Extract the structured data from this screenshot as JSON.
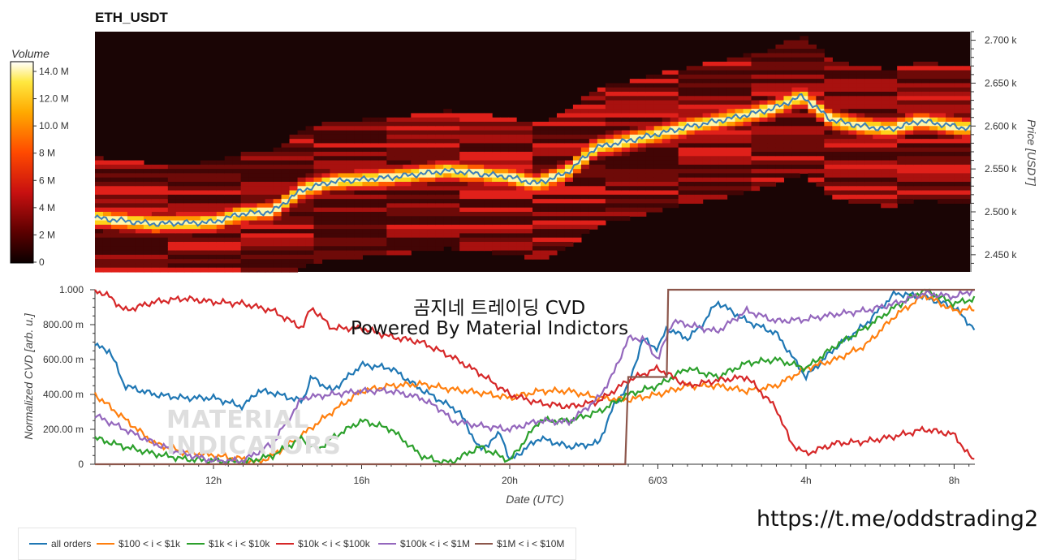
{
  "heatmap": {
    "title": "ETH_USDT",
    "colorbar_title": "Volume",
    "colorbar_ticks": [
      "14.0 M",
      "12.0 M",
      "10.0 M",
      "8 M",
      "6 M",
      "4 M",
      "2 M",
      "0"
    ],
    "y_axis_title": "Price [USDT]",
    "y_ticks": [
      "2.700 k",
      "2.650 k",
      "2.600 k",
      "2.550 k",
      "2.500 k",
      "2.450 k"
    ],
    "colors": {
      "bg": "#1a0505",
      "low": "#8a0e0e",
      "mid": "#e8211a",
      "high": "#ff8a00",
      "peak": "#fff7a8",
      "price_line": "#3c7fb8"
    }
  },
  "cvd": {
    "overlay_title_line1": "곰지네 트레이딩 CVD",
    "overlay_title_line2": "Powered By Material Indictors",
    "watermark_line1": "MATERIAL",
    "watermark_line2": "INDICATORS",
    "y_axis_title": "Normalized CVD [arb. u.]",
    "x_axis_title": "Date (UTC)",
    "link": "https://t.me/oddstrading2"
  },
  "legend": [
    {
      "label": "all orders",
      "color": "#1f77b4"
    },
    {
      "label": "$100 < i < $1k",
      "color": "#ff7f0e"
    },
    {
      "label": "$1k < i < $10k",
      "color": "#2ca02c"
    },
    {
      "label": "$10k < i < $100k",
      "color": "#d62728"
    },
    {
      "label": "$100k < i < $1M",
      "color": "#9467bd"
    },
    {
      "label": "$1M < i < $10M",
      "color": "#8c564b"
    }
  ],
  "chart_data": [
    {
      "type": "heatmap",
      "title": "ETH_USDT",
      "ylabel": "Price [USDT]",
      "ylim": [
        2430,
        2710
      ],
      "colorbar_range": [
        0,
        15000000
      ],
      "price_series": {
        "x": [
          0,
          2,
          4,
          5,
          6,
          7,
          8,
          10,
          12,
          14,
          15,
          16,
          17,
          18,
          20,
          22,
          23,
          24,
          25,
          26,
          27,
          28,
          29.5
        ],
        "y": [
          2493,
          2486,
          2488,
          2498,
          2500,
          2525,
          2535,
          2540,
          2548,
          2541,
          2533,
          2545,
          2575,
          2582,
          2598,
          2612,
          2620,
          2635,
          2607,
          2600,
          2596,
          2606,
          2598
        ]
      }
    },
    {
      "type": "line",
      "xlabel": "Date (UTC)",
      "ylabel": "Normalized CVD [arb. u.]",
      "xlim": [
        0,
        29.7
      ],
      "ylim": [
        0,
        1.0
      ],
      "x_ticks": [
        {
          "x": 4,
          "label": "12h"
        },
        {
          "x": 9,
          "label": "16h"
        },
        {
          "x": 14,
          "label": "20h"
        },
        {
          "x": 19,
          "label": "6/03"
        },
        {
          "x": 24,
          "label": "4h"
        },
        {
          "x": 29,
          "label": "8h"
        }
      ],
      "y_ticks": [
        {
          "y": 1.0,
          "label": "1.000"
        },
        {
          "y": 0.8,
          "label": "800.00 m"
        },
        {
          "y": 0.6,
          "label": "600.00 m"
        },
        {
          "y": 0.4,
          "label": "400.00 m"
        },
        {
          "y": 0.2,
          "label": "200.00 m"
        },
        {
          "y": 0.0,
          "label": "0"
        }
      ],
      "series": [
        {
          "name": "all orders",
          "color": "#1f77b4",
          "x": [
            0,
            0.5,
            1,
            2,
            3,
            4,
            5,
            5.5,
            6,
            7,
            7.3,
            8,
            9,
            10,
            11,
            11.8,
            12.3,
            13,
            13.7,
            14,
            15,
            16,
            17,
            17.5,
            18,
            18.5,
            19,
            19.3,
            20,
            20.5,
            21,
            22,
            23,
            24,
            25,
            26,
            27,
            28,
            29,
            29.7
          ],
          "y": [
            0.68,
            0.65,
            0.45,
            0.4,
            0.38,
            0.38,
            0.33,
            0.42,
            0.41,
            0.36,
            0.5,
            0.42,
            0.57,
            0.55,
            0.43,
            0.35,
            0.3,
            0.08,
            0.18,
            0.02,
            0.15,
            0.1,
            0.12,
            0.33,
            0.45,
            0.72,
            0.66,
            0.78,
            0.72,
            0.8,
            0.93,
            0.82,
            0.75,
            0.5,
            0.67,
            0.8,
            0.98,
            0.96,
            0.9,
            0.77
          ]
        },
        {
          "name": "$100 < i < $1k",
          "color": "#ff7f0e",
          "x": [
            0,
            1,
            2,
            3,
            4,
            5,
            5.5,
            6,
            7,
            8,
            9,
            10,
            11,
            12,
            13,
            14,
            15,
            16,
            17,
            18,
            19,
            20,
            21,
            22,
            23,
            24,
            25,
            26,
            27,
            28,
            29,
            29.7
          ],
          "y": [
            0.4,
            0.26,
            0.12,
            0.07,
            0.05,
            0.03,
            0.01,
            0.05,
            0.17,
            0.3,
            0.42,
            0.45,
            0.46,
            0.43,
            0.41,
            0.38,
            0.42,
            0.42,
            0.38,
            0.37,
            0.4,
            0.45,
            0.45,
            0.42,
            0.45,
            0.55,
            0.6,
            0.68,
            0.85,
            0.97,
            0.88,
            0.89
          ]
        },
        {
          "name": "$1k < i < $10k",
          "color": "#2ca02c",
          "x": [
            0,
            1,
            2,
            3,
            4,
            5,
            5.5,
            6,
            7,
            7.5,
            8,
            9,
            10,
            11,
            11.5,
            12,
            13,
            14,
            15,
            16,
            17,
            18,
            19,
            20,
            21,
            22,
            23,
            24,
            25,
            26,
            27,
            28,
            29,
            29.7
          ],
          "y": [
            0.15,
            0.1,
            0.06,
            0.03,
            0.02,
            0.01,
            0.03,
            0.05,
            0.15,
            0.08,
            0.15,
            0.25,
            0.2,
            0.05,
            0.02,
            0.01,
            0.1,
            0.02,
            0.25,
            0.25,
            0.3,
            0.4,
            0.45,
            0.55,
            0.5,
            0.58,
            0.6,
            0.55,
            0.68,
            0.78,
            0.9,
            1.0,
            0.92,
            0.95
          ]
        },
        {
          "name": "$10k < i < $100k",
          "color": "#d62728",
          "x": [
            0,
            0.5,
            1,
            2,
            3,
            4,
            5,
            6,
            7,
            7.3,
            8,
            9,
            10,
            11,
            11.5,
            12,
            13,
            14,
            15,
            16,
            17,
            18,
            19,
            20,
            21,
            22,
            23,
            23.5,
            24,
            25,
            26,
            27,
            28,
            29,
            29.5,
            29.7
          ],
          "y": [
            1.0,
            0.96,
            0.88,
            0.93,
            0.95,
            0.93,
            0.92,
            0.88,
            0.78,
            0.9,
            0.78,
            0.78,
            0.73,
            0.7,
            0.66,
            0.62,
            0.52,
            0.4,
            0.35,
            0.33,
            0.36,
            0.48,
            0.55,
            0.45,
            0.48,
            0.5,
            0.32,
            0.12,
            0.06,
            0.12,
            0.13,
            0.16,
            0.2,
            0.17,
            0.05,
            0.02
          ]
        },
        {
          "name": "$100k < i < $1M",
          "color": "#9467bd",
          "x": [
            0,
            1,
            2,
            3,
            4,
            5,
            6,
            7,
            8,
            9,
            10,
            11,
            11.8,
            12,
            13,
            14,
            15,
            16,
            17,
            17.5,
            18,
            18.5,
            19,
            19.5,
            20,
            21,
            22,
            23,
            24,
            25,
            26,
            27,
            28,
            29,
            29.7
          ],
          "y": [
            0.28,
            0.2,
            0.12,
            0.06,
            0.02,
            0.02,
            0.12,
            0.38,
            0.4,
            0.42,
            0.42,
            0.38,
            0.3,
            0.25,
            0.22,
            0.2,
            0.25,
            0.24,
            0.38,
            0.52,
            0.72,
            0.72,
            0.6,
            0.82,
            0.8,
            0.76,
            0.88,
            0.82,
            0.83,
            0.86,
            0.88,
            0.92,
            0.98,
            0.96,
            1.0
          ]
        },
        {
          "name": "$1M < i < $10M",
          "color": "#8c564b",
          "x": [
            0,
            17.9,
            18,
            19,
            19.05,
            19.3,
            19.35,
            29.7
          ],
          "y": [
            0,
            0,
            0.5,
            0.5,
            0.5,
            0.5,
            1.0,
            1.0
          ]
        }
      ]
    }
  ]
}
